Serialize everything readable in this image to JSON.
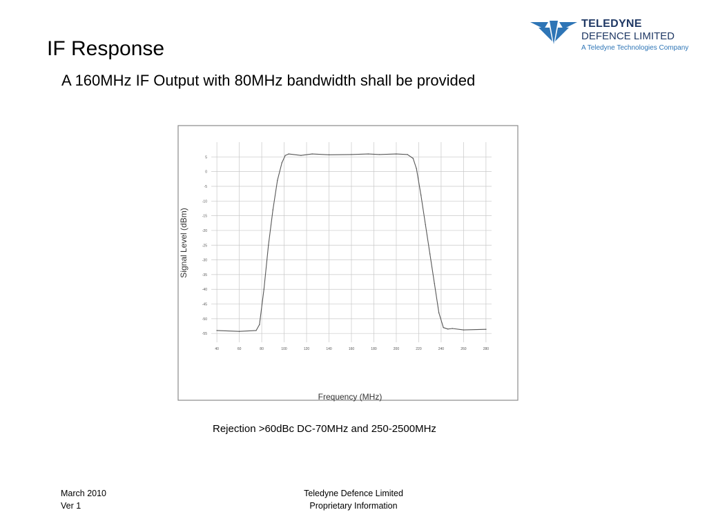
{
  "slide": {
    "title": "IF Response",
    "subtitle": "A 160MHz IF Output with 80MHz bandwidth shall be provided",
    "caption": "Rejection >60dBc DC-70MHz and 250-2500MHz"
  },
  "logo": {
    "brand": "TELEDYNE",
    "division": "DEFENCE LIMITED",
    "tagline": "A Teledyne Technologies Company",
    "color": "#2e75b6"
  },
  "footer": {
    "date": "March  2010",
    "version": "Ver 1",
    "company": "Teledyne Defence Limited",
    "notice": "Proprietary Information"
  },
  "chart_data": {
    "type": "line",
    "title": "",
    "xlabel": "Frequency (MHz)",
    "ylabel": "Signal Level (dBm)",
    "xlim": [
      35,
      285
    ],
    "ylim": [
      -58,
      10
    ],
    "grid": true,
    "x_ticks": [
      40,
      60,
      80,
      100,
      120,
      140,
      160,
      180,
      200,
      220,
      240,
      260,
      280
    ],
    "y_ticks": [
      5,
      0,
      -5,
      -10,
      -15,
      -20,
      -25,
      -30,
      -35,
      -40,
      -45,
      -50,
      -55
    ],
    "series": [
      {
        "x": [
          40,
          60,
          75,
          78,
          82,
          86,
          90,
          94,
          98,
          101,
          104,
          115,
          125,
          140,
          160,
          175,
          185,
          200,
          210,
          215,
          218,
          222,
          226,
          230,
          234,
          238,
          242,
          246,
          250,
          260,
          280
        ],
        "y": [
          -54.0,
          -54.3,
          -54.0,
          -52.0,
          -40.0,
          -25.0,
          -13.0,
          -3.0,
          3.0,
          5.5,
          6.0,
          5.5,
          6.0,
          5.7,
          5.8,
          6.0,
          5.8,
          6.0,
          5.8,
          4.5,
          1.0,
          -8.0,
          -18.0,
          -28.0,
          -38.0,
          -48.0,
          -53.0,
          -53.5,
          -53.3,
          -53.8,
          -53.6
        ]
      }
    ]
  }
}
